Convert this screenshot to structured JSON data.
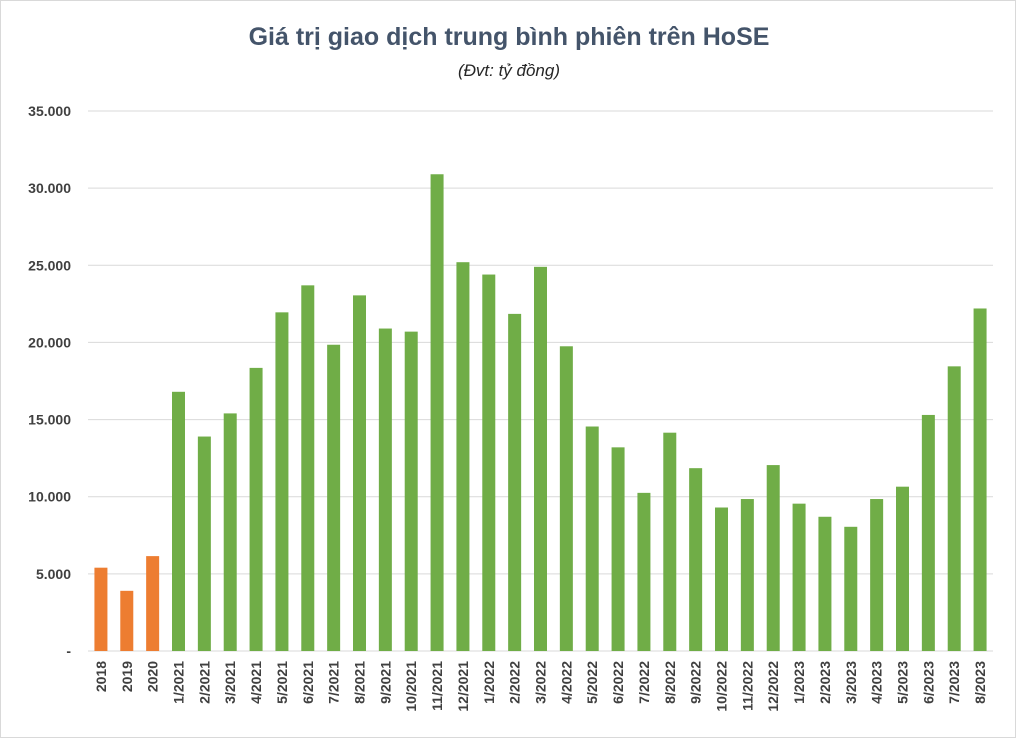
{
  "chart_data": {
    "type": "bar",
    "title": "Giá trị giao dịch trung bình phiên trên HoSE",
    "subtitle": "(Đvt: tỷ đồng)",
    "ylim": [
      0,
      35000
    ],
    "y_ticks": [
      0,
      5000,
      10000,
      15000,
      20000,
      25000,
      30000,
      35000
    ],
    "y_tick_labels": [
      "-",
      "5.000",
      "10.000",
      "15.000",
      "20.000",
      "25.000",
      "30.000",
      "35.000"
    ],
    "grid": true,
    "legend": "none",
    "categories": [
      "2018",
      "2019",
      "2020",
      "1/2021",
      "2/2021",
      "3/2021",
      "4/2021",
      "5/2021",
      "6/2021",
      "7/2021",
      "8/2021",
      "9/2021",
      "10/2021",
      "11/2021",
      "12/2021",
      "1/2022",
      "2/2022",
      "3/2022",
      "4/2022",
      "5/2022",
      "6/2022",
      "7/2022",
      "8/2022",
      "9/2022",
      "10/2022",
      "11/2022",
      "12/2022",
      "1/2023",
      "2/2023",
      "3/2023",
      "4/2023",
      "5/2023",
      "6/2023",
      "7/2023",
      "8/2023"
    ],
    "values": [
      5400,
      3900,
      6150,
      16800,
      13900,
      15400,
      18350,
      21950,
      23700,
      19850,
      23050,
      20900,
      20700,
      30900,
      25200,
      24400,
      21850,
      24900,
      19750,
      14550,
      13200,
      10250,
      14150,
      11850,
      9300,
      9850,
      12050,
      9550,
      8700,
      8050,
      9850,
      10650,
      15300,
      18450,
      22200
    ],
    "colors": {
      "annual": "#ed7d31",
      "monthly": "#70ad47",
      "grid": "#d9d9d9",
      "title": "#44546a"
    },
    "bar_color_groups": [
      "annual",
      "annual",
      "annual",
      "monthly",
      "monthly",
      "monthly",
      "monthly",
      "monthly",
      "monthly",
      "monthly",
      "monthly",
      "monthly",
      "monthly",
      "monthly",
      "monthly",
      "monthly",
      "monthly",
      "monthly",
      "monthly",
      "monthly",
      "monthly",
      "monthly",
      "monthly",
      "monthly",
      "monthly",
      "monthly",
      "monthly",
      "monthly",
      "monthly",
      "monthly",
      "monthly",
      "monthly",
      "monthly",
      "monthly",
      "monthly"
    ]
  }
}
